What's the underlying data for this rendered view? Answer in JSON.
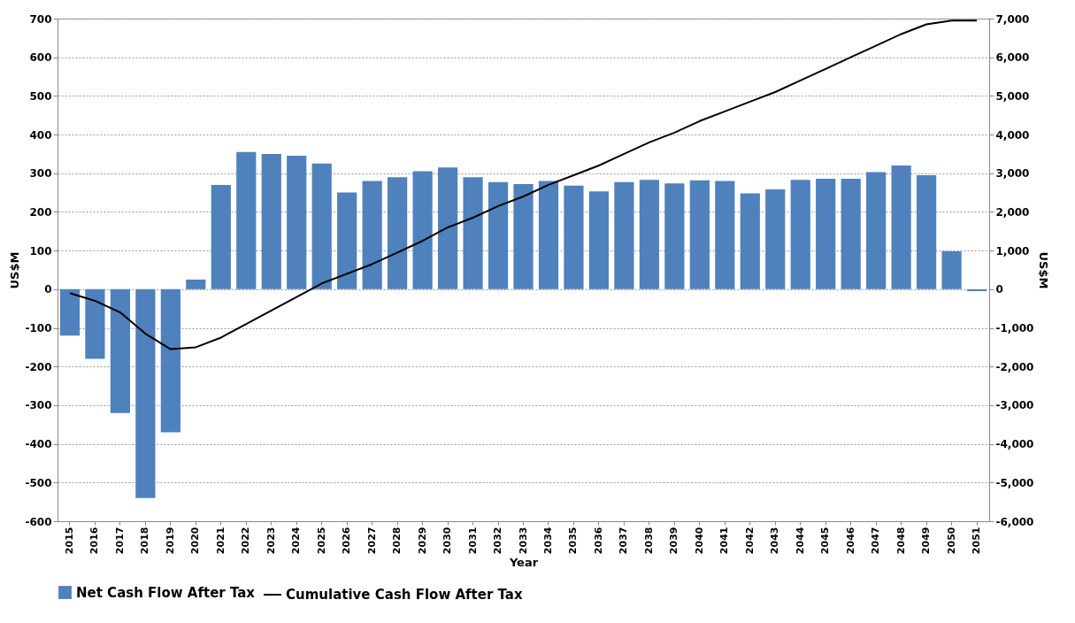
{
  "chart_data": {
    "type": "bar",
    "xlabel": "Year",
    "ylabel": "US$M",
    "y2label": "US$M",
    "categories": [
      "2015",
      "2016",
      "2017",
      "2018",
      "2019",
      "2020",
      "2021",
      "2022",
      "2023",
      "2024",
      "2025",
      "2026",
      "2027",
      "2028",
      "2029",
      "2030",
      "2031",
      "2032",
      "2033",
      "2034",
      "2035",
      "2036",
      "2037",
      "2038",
      "2039",
      "2040",
      "2041",
      "2042",
      "2043",
      "2044",
      "2045",
      "2046",
      "2047",
      "2048",
      "2049",
      "2050",
      "2051"
    ],
    "series": [
      {
        "name": "Net Cash Flow After Tax",
        "color": "#4f81bd",
        "values": [
          -120,
          -180,
          -320,
          -540,
          -370,
          25,
          270,
          355,
          350,
          345,
          325,
          250,
          280,
          290,
          305,
          315,
          290,
          277,
          272,
          280,
          268,
          253,
          277,
          283,
          274,
          282,
          280,
          248,
          258,
          283,
          286,
          286,
          303,
          320,
          295,
          98,
          -5
        ]
      },
      {
        "name": "Cumulative Cash Flow After Tax",
        "type": "line",
        "axis": "y2",
        "color": "#000000",
        "values": [
          -100,
          -300,
          -600,
          -1150,
          -1550,
          -1500,
          -1250,
          -900,
          -550,
          -200,
          150,
          400,
          650,
          950,
          1250,
          1600,
          1850,
          2150,
          2400,
          2700,
          2950,
          3200,
          3500,
          3800,
          4050,
          4350,
          4600,
          4850,
          5100,
          5400,
          5700,
          6000,
          6300,
          6600,
          6850,
          6950,
          6950
        ]
      }
    ],
    "ylim": [
      -600,
      700
    ],
    "yticks": [
      -600,
      -500,
      -400,
      -300,
      -200,
      -100,
      0,
      100,
      200,
      300,
      400,
      500,
      600,
      700
    ],
    "y2lim": [
      -6000,
      7000
    ],
    "y2ticks": [
      {
        "value": -6000,
        "label": "-6,000"
      },
      {
        "value": -5000,
        "label": "-5,000"
      },
      {
        "value": -4000,
        "label": "-4,000"
      },
      {
        "value": -3000,
        "label": "-3,000"
      },
      {
        "value": -2000,
        "label": "-2,000"
      },
      {
        "value": -1000,
        "label": "-1,000"
      },
      0,
      {
        "value": 1000,
        "label": "1,000"
      },
      {
        "value": 2000,
        "label": "2,000"
      },
      {
        "value": 3000,
        "label": "3,000"
      },
      {
        "value": 4000,
        "label": "4,000"
      },
      {
        "value": 5000,
        "label": "5,000"
      },
      {
        "value": 6000,
        "label": "6,000"
      },
      {
        "value": 7000,
        "label": "7,000"
      }
    ],
    "grid": "y",
    "legend": "bottom"
  }
}
